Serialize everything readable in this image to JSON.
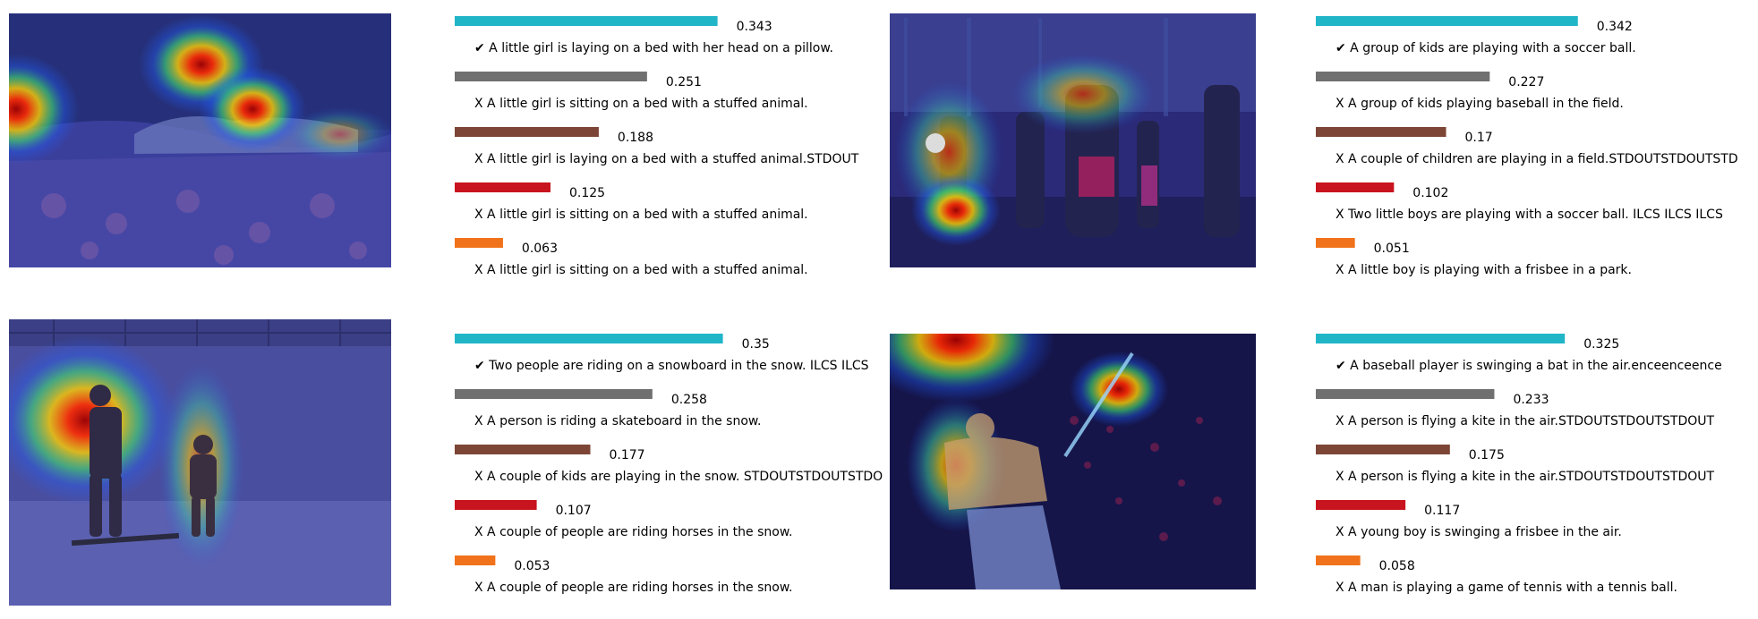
{
  "chart_data": {
    "type": "bar",
    "colors": [
      "#21b5c8",
      "#707070",
      "#7d4536",
      "#c8141e",
      "#f0721a"
    ],
    "panels": [
      {
        "image": "girl-on-bed-heatmap",
        "values": [
          0.343,
          0.251,
          0.188,
          0.125,
          0.063
        ],
        "scores": [
          "0.343",
          "0.251",
          "0.188",
          "0.125",
          "0.063"
        ],
        "captions": [
          "✔ A little girl is laying on a bed with her head on a pillow.",
          "X A little girl is sitting on a bed with a stuffed animal.",
          "X A little girl is laying on a bed with a stuffed animal.STDOUT",
          "X A little girl is sitting on a bed with a stuffed animal.",
          "X A little girl is sitting on a bed with a stuffed animal."
        ]
      },
      {
        "image": "kids-soccer-heatmap",
        "values": [
          0.342,
          0.227,
          0.17,
          0.102,
          0.051
        ],
        "scores": [
          "0.342",
          "0.227",
          "0.17",
          "0.102",
          "0.051"
        ],
        "captions": [
          "✔ A group of kids are playing with a soccer ball.",
          "X A group of kids playing baseball in the field.",
          "X A couple of children are playing in a field.STDOUTSTDOUTSTD",
          "X Two little boys are playing with a soccer ball. ILCS ILCS ILCS",
          "X A little boy is playing with a frisbee in a park."
        ]
      },
      {
        "image": "snowboard-heatmap",
        "values": [
          0.35,
          0.258,
          0.177,
          0.107,
          0.053
        ],
        "scores": [
          "0.35",
          "0.258",
          "0.177",
          "0.107",
          "0.053"
        ],
        "captions": [
          "✔ Two people are riding on a snowboard in the snow. ILCS ILCS",
          "X A person is riding a skateboard in the snow.",
          "X A couple of kids are playing in the snow. STDOUTSTDOUTSTDO",
          "X A couple of people are riding horses in the snow.",
          "X A couple of people are riding horses in the snow."
        ]
      },
      {
        "image": "baseball-swing-heatmap",
        "values": [
          0.325,
          0.233,
          0.175,
          0.117,
          0.058
        ],
        "scores": [
          "0.325",
          "0.233",
          "0.175",
          "0.117",
          "0.058"
        ],
        "captions": [
          "✔ A baseball player is swinging a bat in the air.enceenceence",
          "X A person is flying a kite in the air.STDOUTSTDOUTSTDOUT",
          "X A person is flying a kite in the air.STDOUTSTDOUTSTDOUT",
          "X A young boy is swinging a frisbee in the air.",
          "X A man is playing a game of tennis with a tennis ball."
        ]
      }
    ]
  }
}
